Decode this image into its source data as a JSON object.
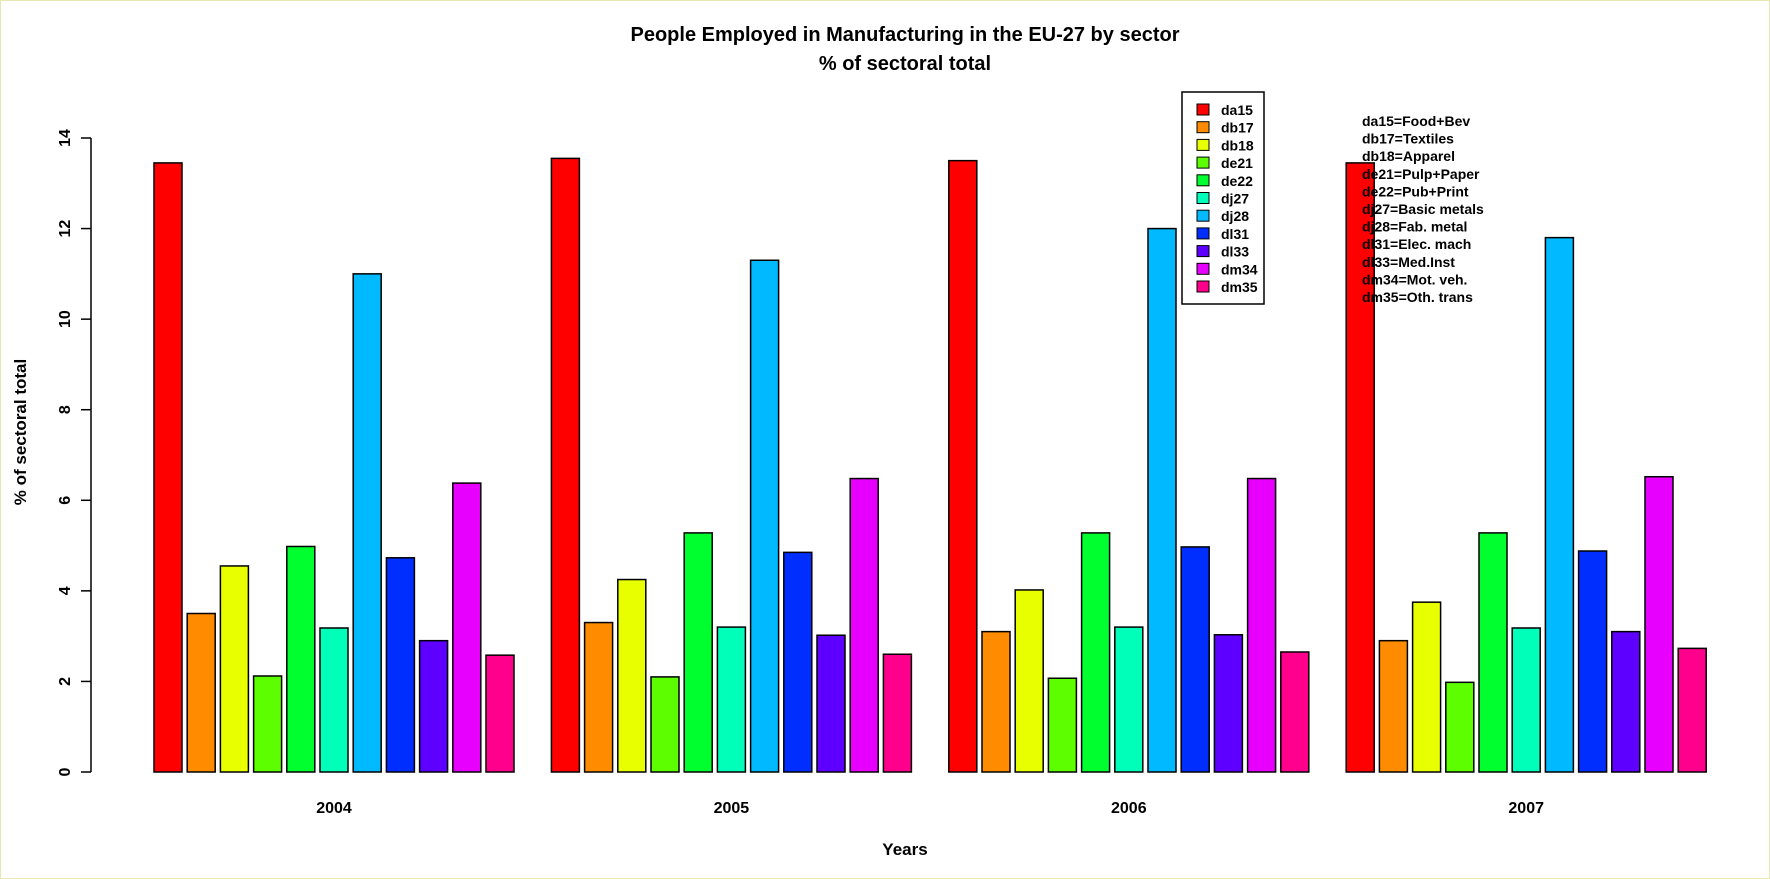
{
  "chart_data": {
    "type": "bar",
    "title": "People Employed in Manufacturing in the EU-27 by sector",
    "subtitle": "% of sectoral total",
    "xlabel": "Years",
    "ylabel": "% of sectoral total",
    "ylim": [
      0,
      14
    ],
    "yticks": [
      0,
      2,
      4,
      6,
      8,
      10,
      12,
      14
    ],
    "grid": false,
    "legend_position": "top-right",
    "categories": [
      "2004",
      "2005",
      "2006",
      "2007"
    ],
    "series": [
      {
        "name": "da15",
        "color": "#ff0000",
        "values": [
          13.45,
          13.55,
          13.5,
          13.45
        ]
      },
      {
        "name": "db17",
        "color": "#ff8c00",
        "values": [
          3.5,
          3.3,
          3.1,
          2.9
        ]
      },
      {
        "name": "db18",
        "color": "#e8ff00",
        "values": [
          4.55,
          4.25,
          4.02,
          3.75
        ]
      },
      {
        "name": "de21",
        "color": "#5dff00",
        "values": [
          2.12,
          2.1,
          2.07,
          1.98
        ]
      },
      {
        "name": "de22",
        "color": "#00ff2e",
        "values": [
          4.98,
          5.28,
          5.28,
          5.28
        ]
      },
      {
        "name": "dj27",
        "color": "#00ffb9",
        "values": [
          3.18,
          3.2,
          3.2,
          3.18
        ]
      },
      {
        "name": "dj28",
        "color": "#00b9ff",
        "values": [
          11.0,
          11.3,
          12.0,
          11.8
        ]
      },
      {
        "name": "dl31",
        "color": "#002eff",
        "values": [
          4.73,
          4.85,
          4.97,
          4.88
        ]
      },
      {
        "name": "dl33",
        "color": "#5d00ff",
        "values": [
          2.9,
          3.02,
          3.03,
          3.1
        ]
      },
      {
        "name": "dm34",
        "color": "#e800ff",
        "values": [
          6.38,
          6.48,
          6.48,
          6.52
        ]
      },
      {
        "name": "dm35",
        "color": "#ff008c",
        "values": [
          2.58,
          2.6,
          2.65,
          2.73
        ]
      }
    ],
    "notes": [
      "da15=Food+Bev",
      "db17=Textiles",
      "db18=Apparel",
      "de21=Pulp+Paper",
      "de22=Pub+Print",
      "dj27=Basic metals",
      "dj28=Fab. metal",
      "dl31=Elec. mach",
      "dl33=Med.Inst",
      "dm34=Mot. veh.",
      "dm35=Oth. trans"
    ]
  }
}
